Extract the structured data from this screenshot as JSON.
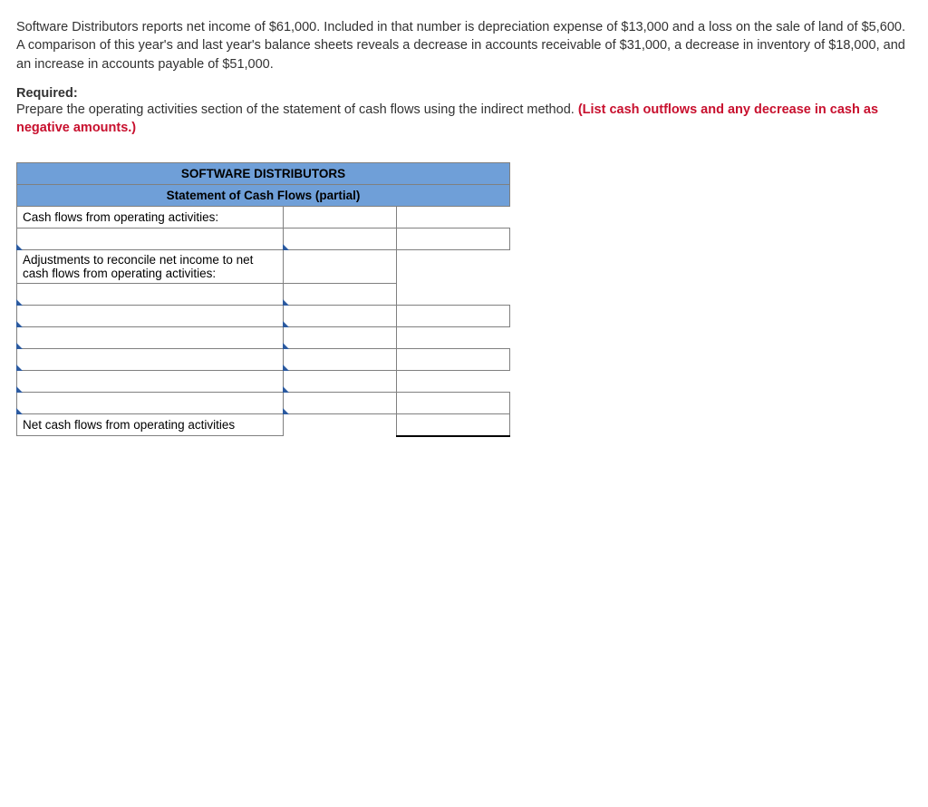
{
  "problem": {
    "text": "Software Distributors reports net income of $61,000. Included in that number is depreciation expense of $13,000 and a loss on the sale of land of $5,600. A comparison of this year's and last year's balance sheets reveals a decrease in accounts receivable of $31,000, a decrease in inventory of $18,000, and an increase in accounts payable of $51,000."
  },
  "required": {
    "label": "Required:",
    "instruction_plain": "Prepare the operating activities section of the statement of cash flows using the indirect method. ",
    "instruction_red": "(List cash outflows and any decrease in cash as negative amounts.)"
  },
  "table": {
    "title1": "SOFTWARE DISTRIBUTORS",
    "title2": "Statement of Cash Flows (partial)",
    "section_cfao": "Cash flows from operating activities:",
    "section_adj": "Adjustments to reconcile net income to net cash flows from operating activities:",
    "net_cash_label": "Net cash flows from operating activities"
  }
}
